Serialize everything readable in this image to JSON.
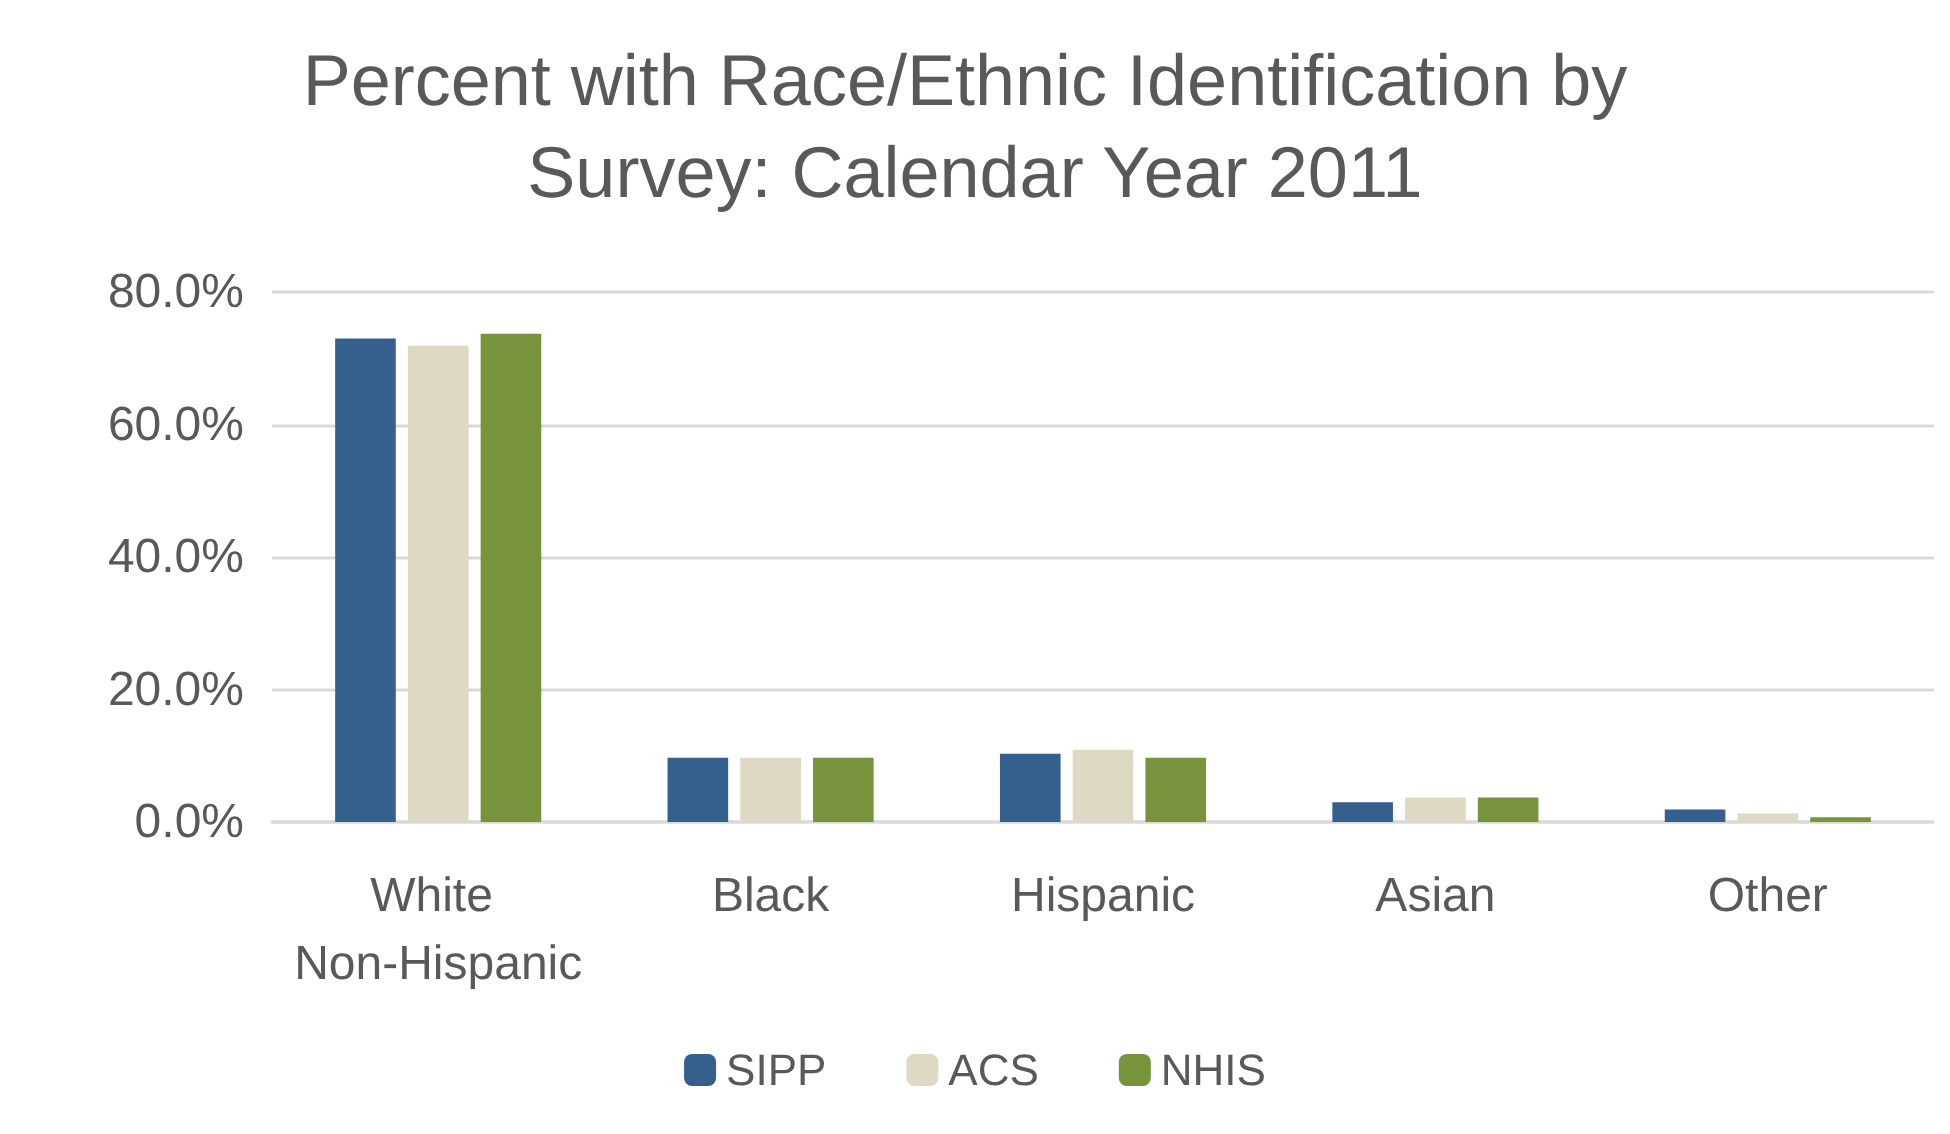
{
  "chart_data": {
    "type": "bar",
    "title": "Percent with Race/Ethnic Identification by Survey: Calendar Year 2011",
    "categories": [
      "White Non-Hispanic",
      "Black",
      "Hispanic",
      "Asian",
      "Other"
    ],
    "series": [
      {
        "name": "SIPP",
        "color": "#355f8d",
        "values": [
          73.0,
          9.7,
          10.3,
          3.0,
          1.9
        ]
      },
      {
        "name": "ACS",
        "color": "#ddd9c3",
        "values": [
          71.9,
          9.7,
          10.9,
          3.7,
          1.3
        ]
      },
      {
        "name": "NHIS",
        "color": "#77933c",
        "values": [
          73.7,
          9.7,
          9.7,
          3.7,
          0.7
        ]
      }
    ],
    "ylim": [
      0,
      80
    ],
    "yticks": [
      {
        "value": 0,
        "label": "0.0%"
      },
      {
        "value": 20,
        "label": "20.0%"
      },
      {
        "value": 40,
        "label": "40.0%"
      },
      {
        "value": 60,
        "label": "60.0%"
      },
      {
        "value": 80,
        "label": "80.0%"
      }
    ],
    "grid": "y",
    "legend": "bottom"
  }
}
